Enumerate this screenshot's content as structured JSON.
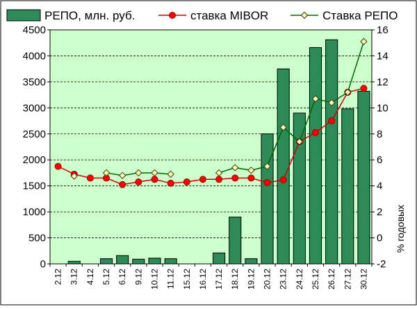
{
  "chart_data": {
    "type": "bar",
    "categories": [
      "2.12",
      "3.12",
      "4.12",
      "5.12",
      "6.12",
      "9.12",
      "10.12",
      "11.12",
      "15.12",
      "16.12",
      "17.12",
      "18.12",
      "19.12",
      "20.12",
      "23.12",
      "24.12",
      "25.12",
      "26.12",
      "27.12",
      "30.12"
    ],
    "series": [
      {
        "name": "РЕПО, млн. руб.",
        "kind": "bar",
        "axis": "left",
        "values": [
          0,
          50,
          0,
          100,
          160,
          90,
          110,
          100,
          0,
          0,
          210,
          900,
          100,
          2500,
          3750,
          2900,
          4160,
          4310,
          2980,
          3320
        ]
      },
      {
        "name": "ставка MIBOR",
        "kind": "line",
        "axis": "right",
        "values": [
          5.5,
          4.9,
          4.6,
          4.6,
          4.1,
          4.3,
          4.5,
          4.2,
          4.3,
          4.5,
          4.5,
          4.6,
          4.6,
          4.25,
          4.45,
          7.4,
          8.1,
          9.0,
          11.2,
          11.5
        ]
      },
      {
        "name": "Ставка РЕПО",
        "kind": "line",
        "axis": "right",
        "values": [
          null,
          4.75,
          null,
          5.0,
          4.8,
          5.0,
          5.0,
          4.9,
          null,
          null,
          5.0,
          5.4,
          5.2,
          5.5,
          8.5,
          7.4,
          10.7,
          10.4,
          11.2,
          15.1
        ]
      }
    ],
    "ylim": [
      0,
      4500
    ],
    "yticks": [
      0,
      500,
      1000,
      1500,
      2000,
      2500,
      3000,
      3500,
      4000,
      4500
    ],
    "y2lim": [
      -2,
      16
    ],
    "y2ticks": [
      -2,
      0,
      2,
      4,
      6,
      8,
      10,
      12,
      14,
      16
    ],
    "y2label": "% годовых",
    "xlabel": "",
    "ylabel": "",
    "grid": true,
    "legend": "top",
    "colors": {
      "plot_bg": "#ccffcc",
      "bar_fill": "#2e8b57",
      "bar_stroke": "#000000",
      "mibor_line": "#cc0000",
      "mibor_marker": "#ff0000",
      "repo_line": "#006600",
      "repo_marker": "#ffff99",
      "grid": "#000000"
    }
  }
}
